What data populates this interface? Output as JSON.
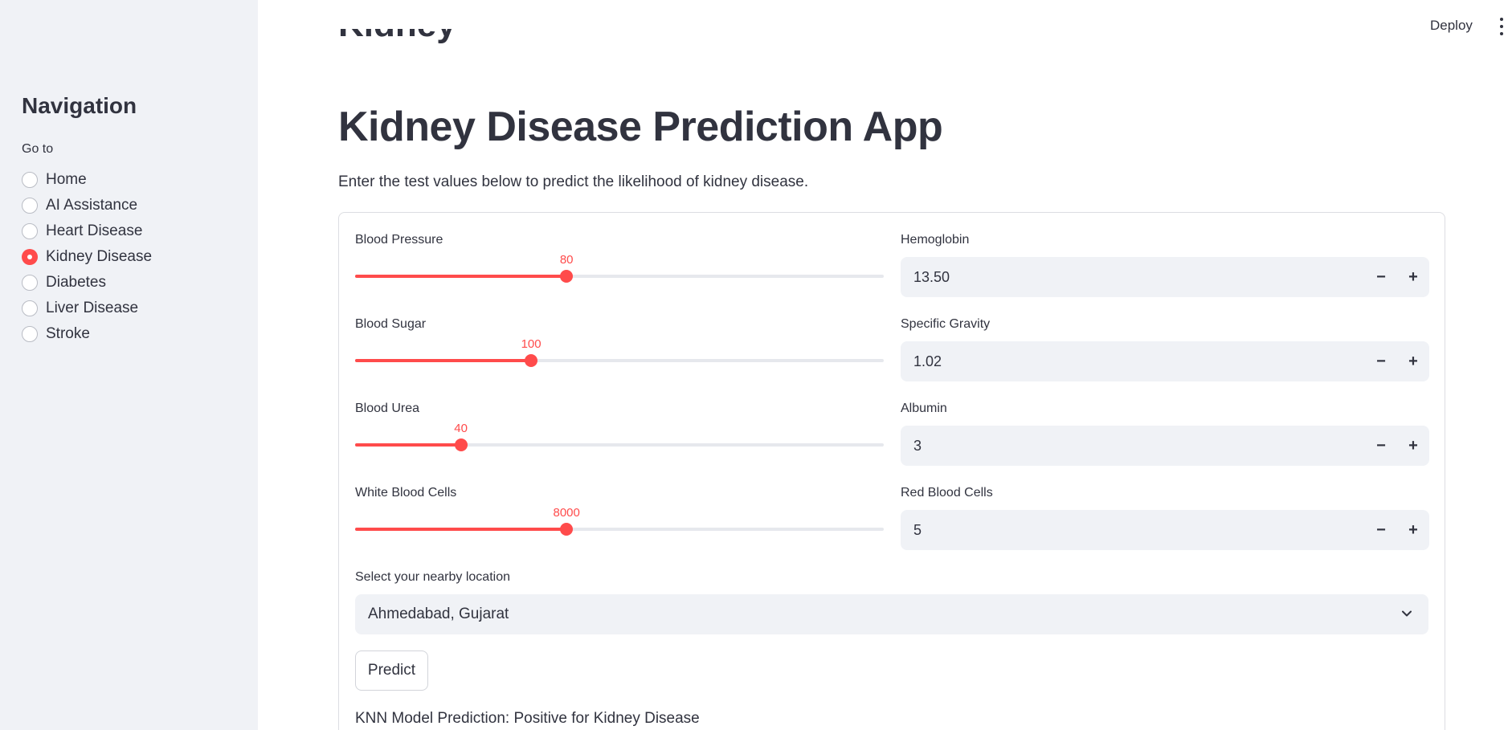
{
  "header": {
    "deploy_label": "Deploy",
    "menu_icon": "vertical-dots-icon"
  },
  "sidebar": {
    "title": "Navigation",
    "goto_label": "Go to",
    "items": [
      {
        "label": "Home",
        "selected": false
      },
      {
        "label": "AI Assistance",
        "selected": false
      },
      {
        "label": "Heart Disease",
        "selected": false
      },
      {
        "label": "Kidney Disease",
        "selected": true
      },
      {
        "label": "Diabetes",
        "selected": false
      },
      {
        "label": "Liver Disease",
        "selected": false
      },
      {
        "label": "Stroke",
        "selected": false
      }
    ]
  },
  "main": {
    "cutoff_heading": "Kidney",
    "title": "Kidney Disease Prediction App",
    "subtitle": "Enter the test values below to predict the likelihood of kidney disease.",
    "sliders": [
      {
        "label": "Blood Pressure",
        "value": "80",
        "fraction": 0.4
      },
      {
        "label": "Blood Sugar",
        "value": "100",
        "fraction": 0.333
      },
      {
        "label": "Blood Urea",
        "value": "40",
        "fraction": 0.2
      },
      {
        "label": "White Blood Cells",
        "value": "8000",
        "fraction": 0.4
      }
    ],
    "number_inputs": [
      {
        "label": "Hemoglobin",
        "value": "13.50"
      },
      {
        "label": "Specific Gravity",
        "value": "1.02"
      },
      {
        "label": "Albumin",
        "value": "3"
      },
      {
        "label": "Red Blood Cells",
        "value": "5"
      }
    ],
    "location": {
      "label": "Select your nearby location",
      "value": "Ahmedabad, Gujarat"
    },
    "predict_label": "Predict",
    "result": "KNN Model Prediction: Positive for Kidney Disease"
  },
  "colors": {
    "accent": "#ff4b4b",
    "sidebar_bg": "#f0f2f6",
    "text": "#31333f"
  }
}
